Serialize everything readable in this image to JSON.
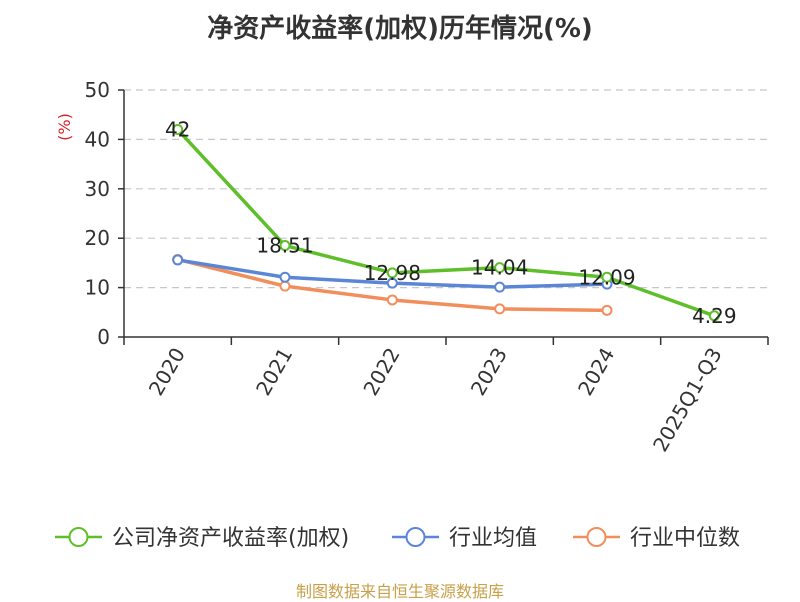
{
  "chart_data": {
    "type": "line",
    "title": "净资产收益率(加权)历年情况(%)",
    "ylabel": "(%)",
    "categories": [
      "2020",
      "2021",
      "2022",
      "2023",
      "2024",
      "2025Q1-Q3"
    ],
    "ylim": [
      0,
      50
    ],
    "yticks": [
      0,
      10,
      20,
      30,
      40,
      50
    ],
    "grid": true,
    "legend_position": "bottom",
    "series": [
      {
        "name": "公司净资产收益率(加权)",
        "color": "#5fbf2a",
        "values": [
          42,
          18.51,
          12.98,
          14.04,
          12.09,
          4.29
        ],
        "labels": [
          "42",
          "18.51",
          "12.98",
          "14.04",
          "12.09",
          "4.29"
        ]
      },
      {
        "name": "行业均值",
        "color": "#5b86d6",
        "values": [
          15.6,
          12.1,
          10.9,
          10.1,
          10.7,
          null
        ]
      },
      {
        "name": "行业中位数",
        "color": "#f28e5c",
        "values": [
          15.7,
          10.3,
          7.5,
          5.7,
          5.4,
          null
        ]
      }
    ]
  },
  "source": "制图数据来自恒生聚源数据库"
}
